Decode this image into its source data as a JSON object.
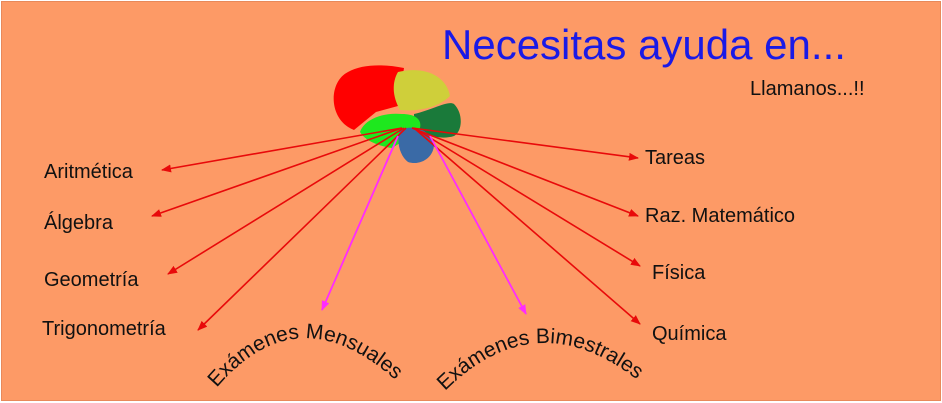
{
  "header": {
    "title": "Necesitas ayuda en...",
    "subtitle": "Llamanos...!!"
  },
  "left_topics": [
    "Aritmética",
    "Álgebra",
    "Geometría",
    "Trigonometría"
  ],
  "right_topics": [
    "Tareas",
    "Raz. Matemático",
    "Física",
    "Química"
  ],
  "exams": [
    "Exámenes Mensuales",
    "Exámenes Bimestrales"
  ],
  "colors": {
    "background": "#fd9a66",
    "title": "#1a1ae6",
    "topic_arrows": "#e80a0a",
    "exam_arrows": "#ff2bff",
    "brain_red": "#ff0000",
    "brain_yellow": "#cfcf3a",
    "brain_green_dark": "#1a7a3a",
    "brain_green_light": "#1ee81e",
    "brain_blue": "#3a6aa6"
  },
  "icons": {
    "brain": "brain-icon"
  }
}
